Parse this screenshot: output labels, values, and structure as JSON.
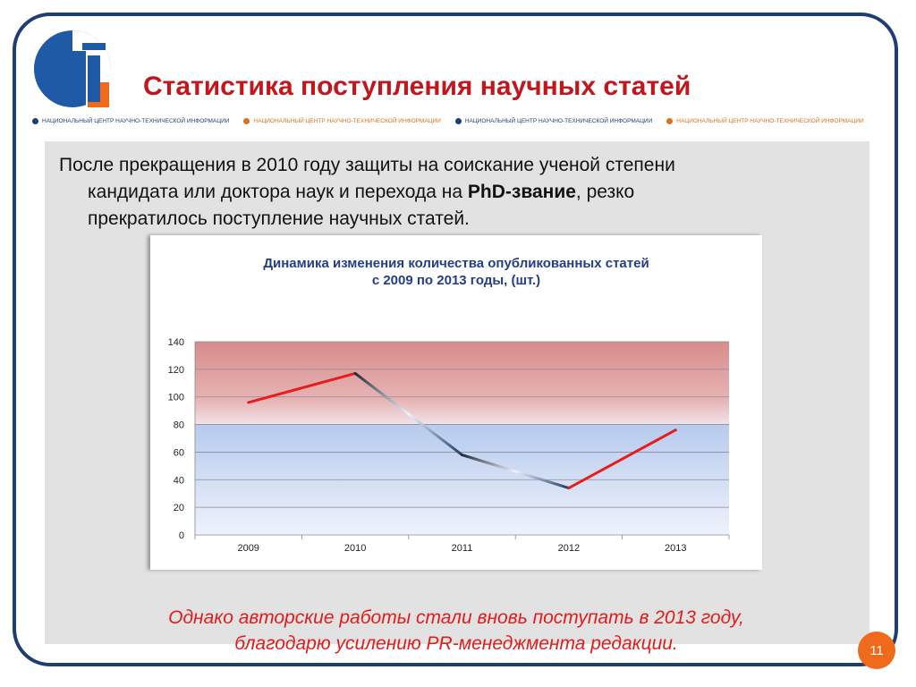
{
  "title": "Статистика поступления научных статей",
  "org_strip": [
    {
      "text": "НАЦИОНАЛЬНЫЙ ЦЕНТР НАУЧНО-ТЕХНИЧЕСКОЙ ИНФОРМАЦИИ",
      "color": "#1f3d73"
    },
    {
      "text": "НАЦИОНАЛЬНЫЙ ЦЕНТР НАУЧНО-ТЕХНИЧЕСКОЙ ИНФОРМАЦИИ",
      "color": "#e0701f"
    },
    {
      "text": "НАЦИОНАЛЬНЫЙ ЦЕНТР НАУЧНО-ТЕХНИЧЕСКОЙ ИНФОРМАЦИИ",
      "color": "#1f3d73"
    },
    {
      "text": "НАЦИОНАЛЬНЫЙ ЦЕНТР НАУЧНО-ТЕХНИЧЕСКОЙ ИНФОРМАЦИИ",
      "color": "#e0701f"
    }
  ],
  "paragraph": {
    "line1": "После прекращения в 2010 году защиты на соискание ученой степени",
    "line2_a": "кандидата или доктора наук и перехода на",
    "line2_bold": "PhD-звание",
    "line2_b": ", резко",
    "line3": "прекратилось поступление  научных статей."
  },
  "conclusion": {
    "line1": "Однако  авторские работы  стали  вновь поступать  в 2013 году,",
    "line2": "благодарю усилению  PR-менеджмента редакции."
  },
  "page_number": "11",
  "colors": {
    "brand_blue": "#1f3d73",
    "title_red": "#c2161d",
    "accent_orange": "#f06a1c",
    "line_red": "#e81c1c",
    "line_dark": "#1f3b66"
  },
  "chart_data": {
    "type": "line",
    "title_line1": "Динамика изменения количества опубликованных статей",
    "title_line2": "с 2009  по 2013 годы, (шт.)",
    "categories": [
      "2009",
      "2010",
      "2011",
      "2012",
      "2013"
    ],
    "values": [
      96,
      117,
      58,
      34,
      76
    ],
    "ylim": [
      0,
      140
    ],
    "yticks": [
      0,
      20,
      40,
      60,
      80,
      100,
      120,
      140
    ],
    "grid": true,
    "legend": "none",
    "background_bands": [
      {
        "from": 80,
        "to": 140,
        "color": "red-tint"
      },
      {
        "from": 0,
        "to": 80,
        "color": "blue-tint"
      }
    ]
  }
}
